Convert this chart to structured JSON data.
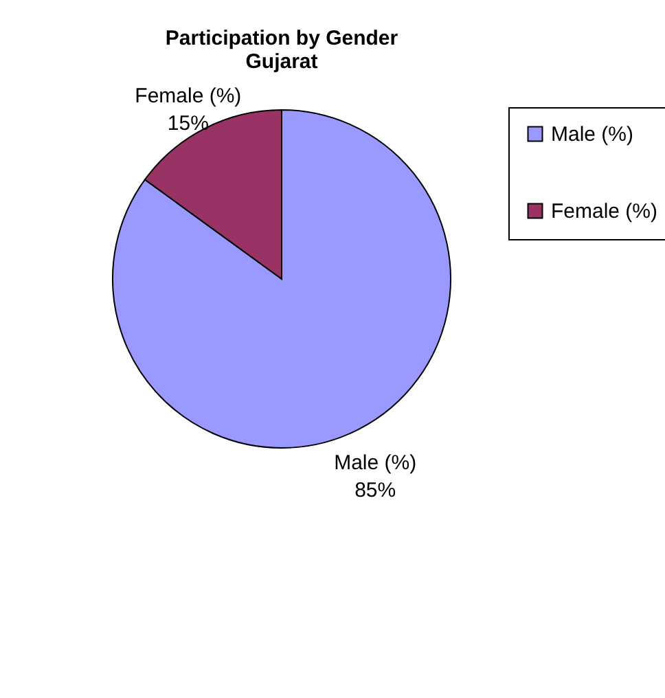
{
  "chart_data": {
    "type": "pie",
    "title": [
      "Participation by Gender",
      "Gujarat"
    ],
    "categories": [
      "Male (%)",
      "Female (%)"
    ],
    "values": [
      85,
      15
    ],
    "colors": [
      "#9999ff",
      "#993366"
    ],
    "value_labels": [
      "85%",
      "15%"
    ],
    "legend": "right"
  }
}
